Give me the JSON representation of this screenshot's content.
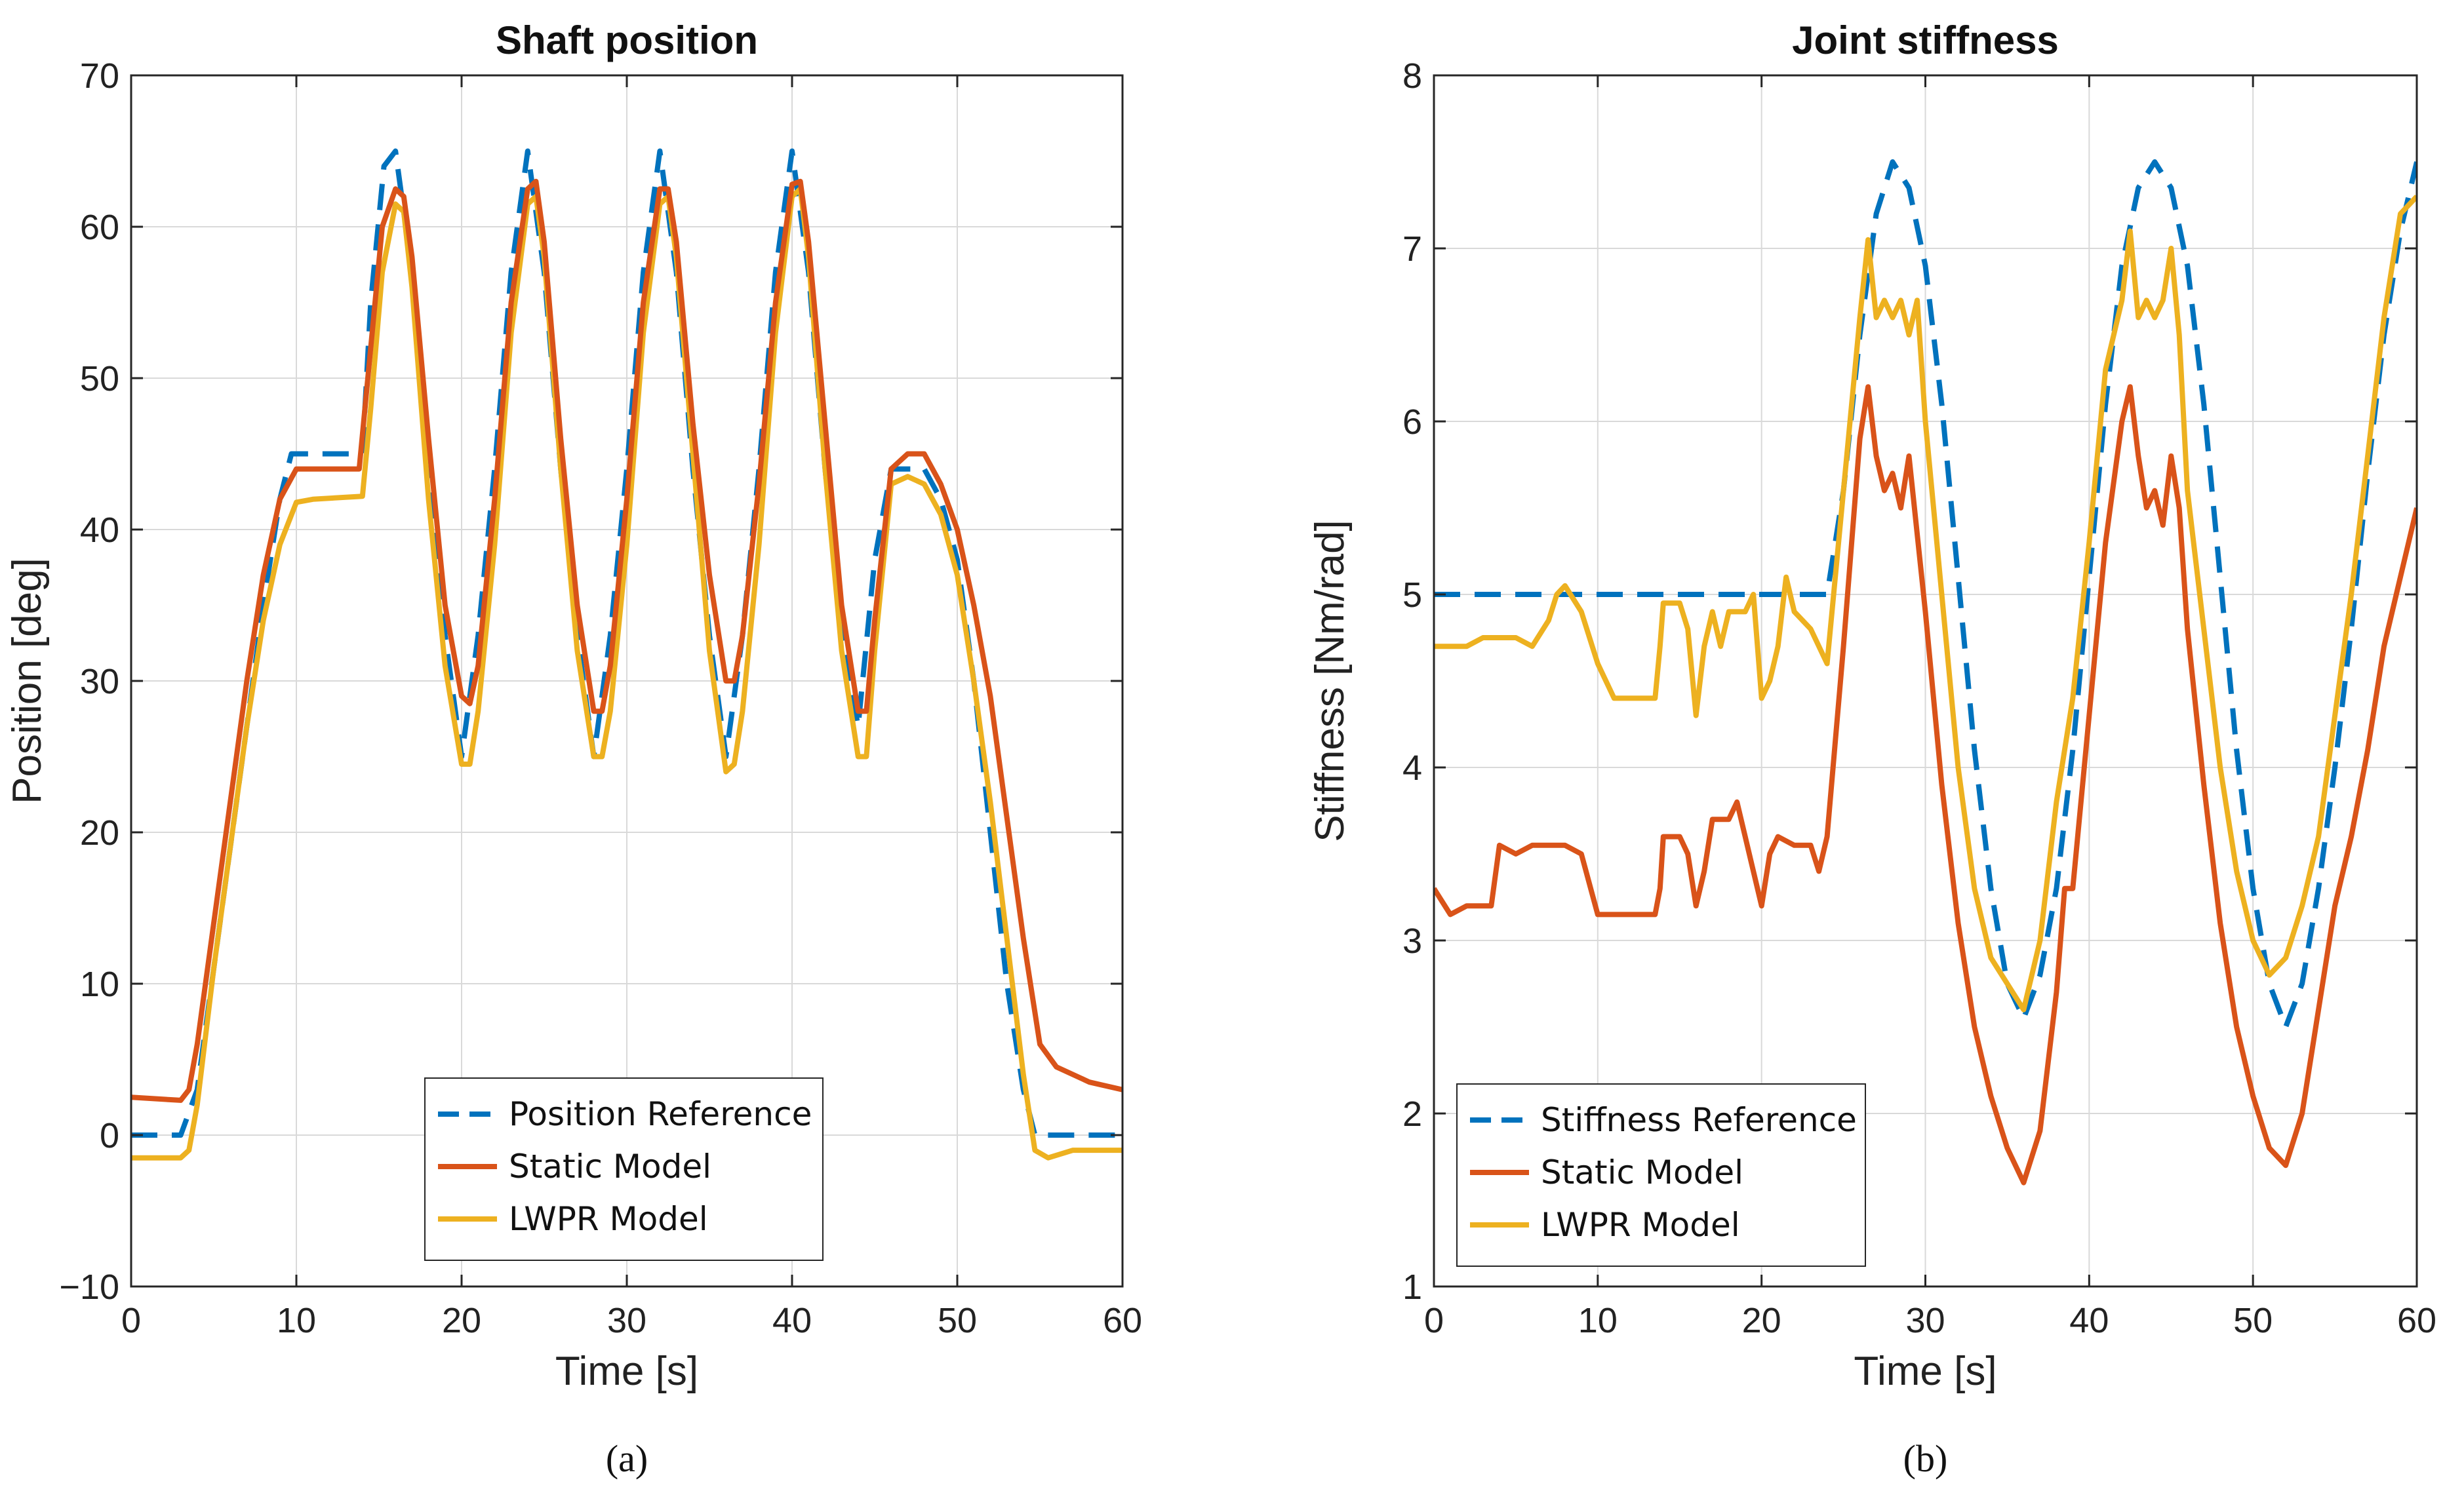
{
  "colors": {
    "reference": "#0072BD",
    "static": "#D95319",
    "lwpr": "#EDB120",
    "axis": "#262626",
    "grid": "#d9d9d9"
  },
  "chart_data": [
    {
      "type": "line",
      "title": "Shaft position",
      "xlabel": "Time [s]",
      "ylabel": "Position [deg]",
      "xlim": [
        0,
        60
      ],
      "ylim": [
        -10,
        70
      ],
      "xticks": [
        0,
        10,
        20,
        30,
        40,
        50,
        60
      ],
      "yticks": [
        -10,
        0,
        10,
        20,
        30,
        40,
        50,
        60,
        70
      ],
      "ytick_labels": [
        "−10",
        "0",
        "10",
        "20",
        "30",
        "40",
        "50",
        "60",
        "70"
      ],
      "subcaption": "(a)",
      "legend_position": "bottom-center",
      "series": [
        {
          "name": "Position Reference",
          "style": "dashed",
          "color_key": "reference",
          "x": [
            0,
            3,
            4,
            5,
            6,
            7,
            8,
            9,
            9.7,
            10,
            14,
            14.5,
            15.3,
            16,
            17,
            18,
            19,
            20,
            21,
            22,
            23,
            24,
            25,
            26,
            27,
            28,
            29,
            30,
            31,
            32,
            33,
            34,
            35,
            36,
            37,
            38,
            39,
            40,
            41,
            42,
            43,
            44,
            45,
            46,
            47,
            48,
            49,
            50,
            51,
            52,
            53,
            54,
            54.7,
            55,
            60
          ],
          "y": [
            0,
            0,
            3,
            11,
            19,
            27,
            35,
            42,
            45,
            45,
            45,
            55,
            64,
            65,
            57,
            44,
            33,
            25,
            33,
            44,
            57,
            65,
            57,
            44,
            33,
            25,
            33,
            44,
            57,
            65,
            57,
            44,
            33,
            25,
            33,
            44,
            57,
            65,
            57,
            44,
            33,
            27,
            38,
            44,
            44,
            44,
            42,
            38,
            30,
            20,
            10,
            3,
            0,
            0,
            0
          ]
        },
        {
          "name": "Static Model",
          "style": "solid",
          "color_key": "static",
          "x": [
            0,
            3,
            3.5,
            4,
            5,
            6,
            7,
            8,
            9,
            10,
            11,
            13.8,
            14.5,
            15.2,
            16,
            16.5,
            17,
            18,
            19,
            20,
            20.5,
            21,
            22,
            23,
            24,
            24.5,
            25,
            26,
            27,
            28,
            28.5,
            29,
            30,
            31,
            32,
            32.5,
            33,
            34,
            35,
            36,
            36.5,
            37,
            38,
            39,
            40,
            40.5,
            41,
            42,
            43,
            44,
            44.5,
            45,
            46,
            47,
            48,
            49,
            50,
            51,
            52,
            53,
            54,
            55,
            56,
            58,
            60
          ],
          "y": [
            2.5,
            2.3,
            3,
            6,
            14,
            22,
            30,
            37,
            42,
            44,
            44,
            44,
            52,
            60,
            62.5,
            62,
            58,
            46,
            35,
            29,
            28.5,
            31,
            42,
            55,
            62.5,
            63,
            59,
            46,
            35,
            28,
            28,
            31,
            42,
            55,
            62.5,
            62.5,
            59,
            47,
            37,
            30,
            30,
            33,
            43,
            55,
            62.8,
            63,
            59,
            47,
            35,
            28,
            28,
            34,
            44,
            45,
            45,
            43,
            40,
            35,
            29,
            21,
            13,
            6,
            4.5,
            3.5,
            3
          ]
        },
        {
          "name": "LWPR Model",
          "style": "solid",
          "color_key": "lwpr",
          "x": [
            0,
            3,
            3.5,
            4,
            5,
            6,
            7,
            8,
            9,
            10,
            11,
            14,
            14.5,
            15.2,
            16,
            16.5,
            17,
            18,
            19,
            20,
            20.5,
            21,
            22,
            23,
            24,
            24.5,
            25,
            26,
            27,
            28,
            28.5,
            29,
            30,
            31,
            32,
            32.5,
            33,
            34,
            35,
            36,
            36.5,
            37,
            38,
            39,
            40,
            40.5,
            41,
            42,
            43,
            44,
            44.5,
            45,
            46,
            47,
            48,
            49,
            50,
            51,
            52,
            53,
            54,
            54.7,
            55.5,
            57,
            60
          ],
          "y": [
            -1.5,
            -1.5,
            -1,
            2,
            11,
            19,
            27,
            34,
            39,
            41.8,
            42,
            42.2,
            48,
            57,
            61.5,
            61,
            56,
            42,
            31,
            24.5,
            24.5,
            28,
            39,
            53,
            61.5,
            62,
            58,
            44,
            32,
            25,
            25,
            28,
            39,
            53,
            61.5,
            62,
            58,
            45,
            32,
            24,
            24.5,
            28,
            39,
            53,
            62,
            62.5,
            58,
            44,
            32,
            25,
            25,
            32,
            43,
            43.5,
            43,
            41,
            37,
            30,
            22,
            13,
            4,
            -1,
            -1.5,
            -1,
            -1
          ]
        }
      ]
    },
    {
      "type": "line",
      "title": "Joint stiffness",
      "xlabel": "Time [s]",
      "ylabel": "Stiffness [Nm/rad]",
      "xlim": [
        0,
        60
      ],
      "ylim": [
        1,
        8
      ],
      "xticks": [
        0,
        10,
        20,
        30,
        40,
        50,
        60
      ],
      "yticks": [
        1,
        2,
        3,
        4,
        5,
        6,
        7,
        8
      ],
      "ytick_labels": [
        "1",
        "2",
        "3",
        "4",
        "5",
        "6",
        "7",
        "8"
      ],
      "subcaption": "(b)",
      "legend_position": "bottom-left",
      "series": [
        {
          "name": "Stiffness Reference",
          "style": "dashed",
          "color_key": "reference",
          "x": [
            0,
            24,
            25,
            26,
            27,
            28,
            29,
            30,
            31,
            32,
            33,
            34,
            35,
            36,
            37,
            38,
            39,
            40,
            41,
            42,
            43,
            44,
            45,
            46,
            47,
            48,
            49,
            50,
            51,
            52,
            53,
            54,
            55,
            56,
            57,
            58,
            59,
            60
          ],
          "y": [
            5,
            5,
            5.6,
            6.5,
            7.2,
            7.5,
            7.35,
            6.9,
            6.1,
            5.1,
            4.1,
            3.3,
            2.75,
            2.55,
            2.8,
            3.3,
            4.1,
            5.1,
            6.1,
            6.9,
            7.35,
            7.5,
            7.35,
            6.9,
            6.1,
            5.1,
            4.1,
            3.3,
            2.75,
            2.5,
            2.75,
            3.3,
            4.0,
            4.8,
            5.7,
            6.5,
            7.1,
            7.5
          ]
        },
        {
          "name": "Static Model",
          "style": "solid",
          "color_key": "static",
          "x": [
            0,
            1,
            2,
            3.5,
            4,
            5,
            6,
            7,
            8,
            9,
            10,
            11,
            12,
            13.5,
            13.8,
            14,
            15,
            15.5,
            16,
            16.5,
            17,
            18,
            18.5,
            19,
            19.5,
            20,
            20.5,
            21,
            22,
            23,
            23.5,
            24,
            25,
            26,
            26.5,
            27,
            27.5,
            28,
            28.5,
            29,
            30,
            31,
            32,
            33,
            34,
            35,
            36,
            37,
            38,
            38.5,
            39,
            40,
            41,
            42,
            42.5,
            43,
            43.5,
            44,
            44.5,
            45,
            45.5,
            46,
            47,
            48,
            49,
            50,
            51,
            52,
            53,
            54,
            55,
            56,
            57,
            58,
            59,
            60
          ],
          "y": [
            3.3,
            3.15,
            3.2,
            3.2,
            3.55,
            3.5,
            3.55,
            3.55,
            3.55,
            3.5,
            3.15,
            3.15,
            3.15,
            3.15,
            3.3,
            3.6,
            3.6,
            3.5,
            3.2,
            3.4,
            3.7,
            3.7,
            3.8,
            3.6,
            3.4,
            3.2,
            3.5,
            3.6,
            3.55,
            3.55,
            3.4,
            3.6,
            4.7,
            5.9,
            6.2,
            5.8,
            5.6,
            5.7,
            5.5,
            5.8,
            4.9,
            3.9,
            3.1,
            2.5,
            2.1,
            1.8,
            1.6,
            1.9,
            2.7,
            3.3,
            3.3,
            4.3,
            5.3,
            6.0,
            6.2,
            5.8,
            5.5,
            5.6,
            5.4,
            5.8,
            5.5,
            4.8,
            3.9,
            3.1,
            2.5,
            2.1,
            1.8,
            1.7,
            2.0,
            2.6,
            3.2,
            3.6,
            4.1,
            4.7,
            5.1,
            5.5
          ]
        },
        {
          "name": "LWPR Model",
          "style": "solid",
          "color_key": "lwpr",
          "x": [
            0,
            2,
            3,
            4,
            5,
            6,
            7,
            7.5,
            8,
            9,
            10,
            11,
            12,
            13.5,
            13.8,
            14,
            15,
            15.5,
            16,
            16.5,
            17,
            17.5,
            18,
            19,
            19.5,
            20,
            20.5,
            21,
            21.5,
            22,
            23,
            24,
            25,
            26,
            26.5,
            27,
            27.5,
            28,
            28.5,
            29,
            29.5,
            30,
            31,
            32,
            33,
            34,
            35,
            36,
            37,
            38,
            39,
            40,
            41,
            42,
            42.5,
            43,
            43.5,
            44,
            44.5,
            45,
            45.5,
            46,
            47,
            48,
            49,
            50,
            51,
            52,
            53,
            54,
            55,
            56,
            57,
            58,
            59,
            60
          ],
          "y": [
            4.7,
            4.7,
            4.75,
            4.75,
            4.75,
            4.7,
            4.85,
            5.0,
            5.05,
            4.9,
            4.6,
            4.4,
            4.4,
            4.4,
            4.7,
            4.95,
            4.95,
            4.8,
            4.3,
            4.7,
            4.9,
            4.7,
            4.9,
            4.9,
            5.0,
            4.4,
            4.5,
            4.7,
            5.1,
            4.9,
            4.8,
            4.6,
            5.6,
            6.6,
            7.05,
            6.6,
            6.7,
            6.6,
            6.7,
            6.5,
            6.7,
            6.0,
            5.0,
            4.0,
            3.3,
            2.9,
            2.75,
            2.6,
            3.0,
            3.8,
            4.4,
            5.3,
            6.3,
            6.7,
            7.1,
            6.6,
            6.7,
            6.6,
            6.7,
            7.0,
            6.5,
            5.6,
            4.8,
            4.0,
            3.4,
            3.0,
            2.8,
            2.9,
            3.2,
            3.6,
            4.3,
            5.0,
            5.8,
            6.6,
            7.2,
            7.3
          ]
        }
      ]
    }
  ]
}
